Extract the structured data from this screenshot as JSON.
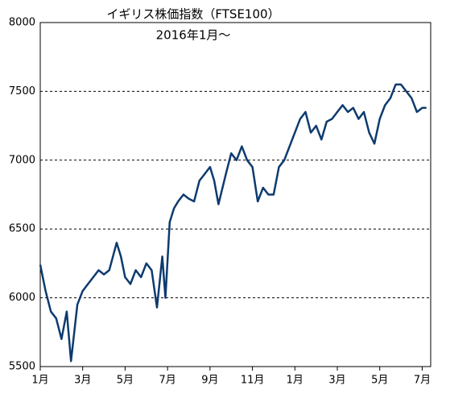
{
  "chart_data": {
    "type": "line",
    "title": "イギリス株価指数（FTSE100）",
    "subtitle": "2016年1月～",
    "x": [
      0,
      0.25,
      0.5,
      0.75,
      1,
      1.25,
      1.45,
      1.75,
      2,
      2.25,
      2.5,
      2.75,
      3,
      3.25,
      3.6,
      3.8,
      4,
      4.25,
      4.5,
      4.75,
      5,
      5.25,
      5.5,
      5.75,
      5.9,
      6.1,
      6.3,
      6.5,
      6.75,
      7,
      7.25,
      7.5,
      7.75,
      8,
      8.2,
      8.4,
      8.75,
      9,
      9.25,
      9.5,
      9.75,
      10,
      10.25,
      10.5,
      10.75,
      11,
      11.25,
      11.5,
      11.75,
      12,
      12.25,
      12.5,
      12.75,
      13,
      13.25,
      13.5,
      13.75,
      14,
      14.25,
      14.5,
      14.75,
      15,
      15.25,
      15.5,
      15.75,
      16,
      16.25,
      16.5,
      16.75,
      17,
      17.25,
      17.5,
      17.75,
      18,
      18.2
    ],
    "series": [
      {
        "name": "FTSE100",
        "color": "#0d3b6e",
        "values": [
          6240,
          6050,
          5900,
          5850,
          5700,
          5900,
          5540,
          5950,
          6050,
          6100,
          6150,
          6200,
          6170,
          6200,
          6400,
          6300,
          6150,
          6100,
          6200,
          6150,
          6250,
          6200,
          5930,
          6300,
          6000,
          6550,
          6650,
          6700,
          6750,
          6720,
          6700,
          6850,
          6900,
          6950,
          6850,
          6680,
          6900,
          7050,
          7000,
          7100,
          7000,
          6950,
          6700,
          6800,
          6750,
          6750,
          6950,
          7000,
          7100,
          7200,
          7300,
          7350,
          7200,
          7250,
          7150,
          7280,
          7300,
          7350,
          7400,
          7350,
          7380,
          7300,
          7350,
          7200,
          7120,
          7300,
          7400,
          7450,
          7550,
          7550,
          7500,
          7450,
          7350,
          7380,
          7380
        ]
      }
    ],
    "xlim": [
      0,
      18.4
    ],
    "xticks": [
      {
        "value": 0,
        "label": "1月"
      },
      {
        "value": 2,
        "label": "3月"
      },
      {
        "value": 4,
        "label": "5月"
      },
      {
        "value": 6,
        "label": "7月"
      },
      {
        "value": 8,
        "label": "9月"
      },
      {
        "value": 10,
        "label": "11月"
      },
      {
        "value": 12,
        "label": "1月"
      },
      {
        "value": 14,
        "label": "3月"
      },
      {
        "value": 16,
        "label": "5月"
      },
      {
        "value": 18,
        "label": "7月"
      }
    ],
    "ylim": [
      5500,
      8000
    ],
    "yticks": [
      5500,
      6000,
      6500,
      7000,
      7500,
      8000
    ],
    "grid": true
  }
}
